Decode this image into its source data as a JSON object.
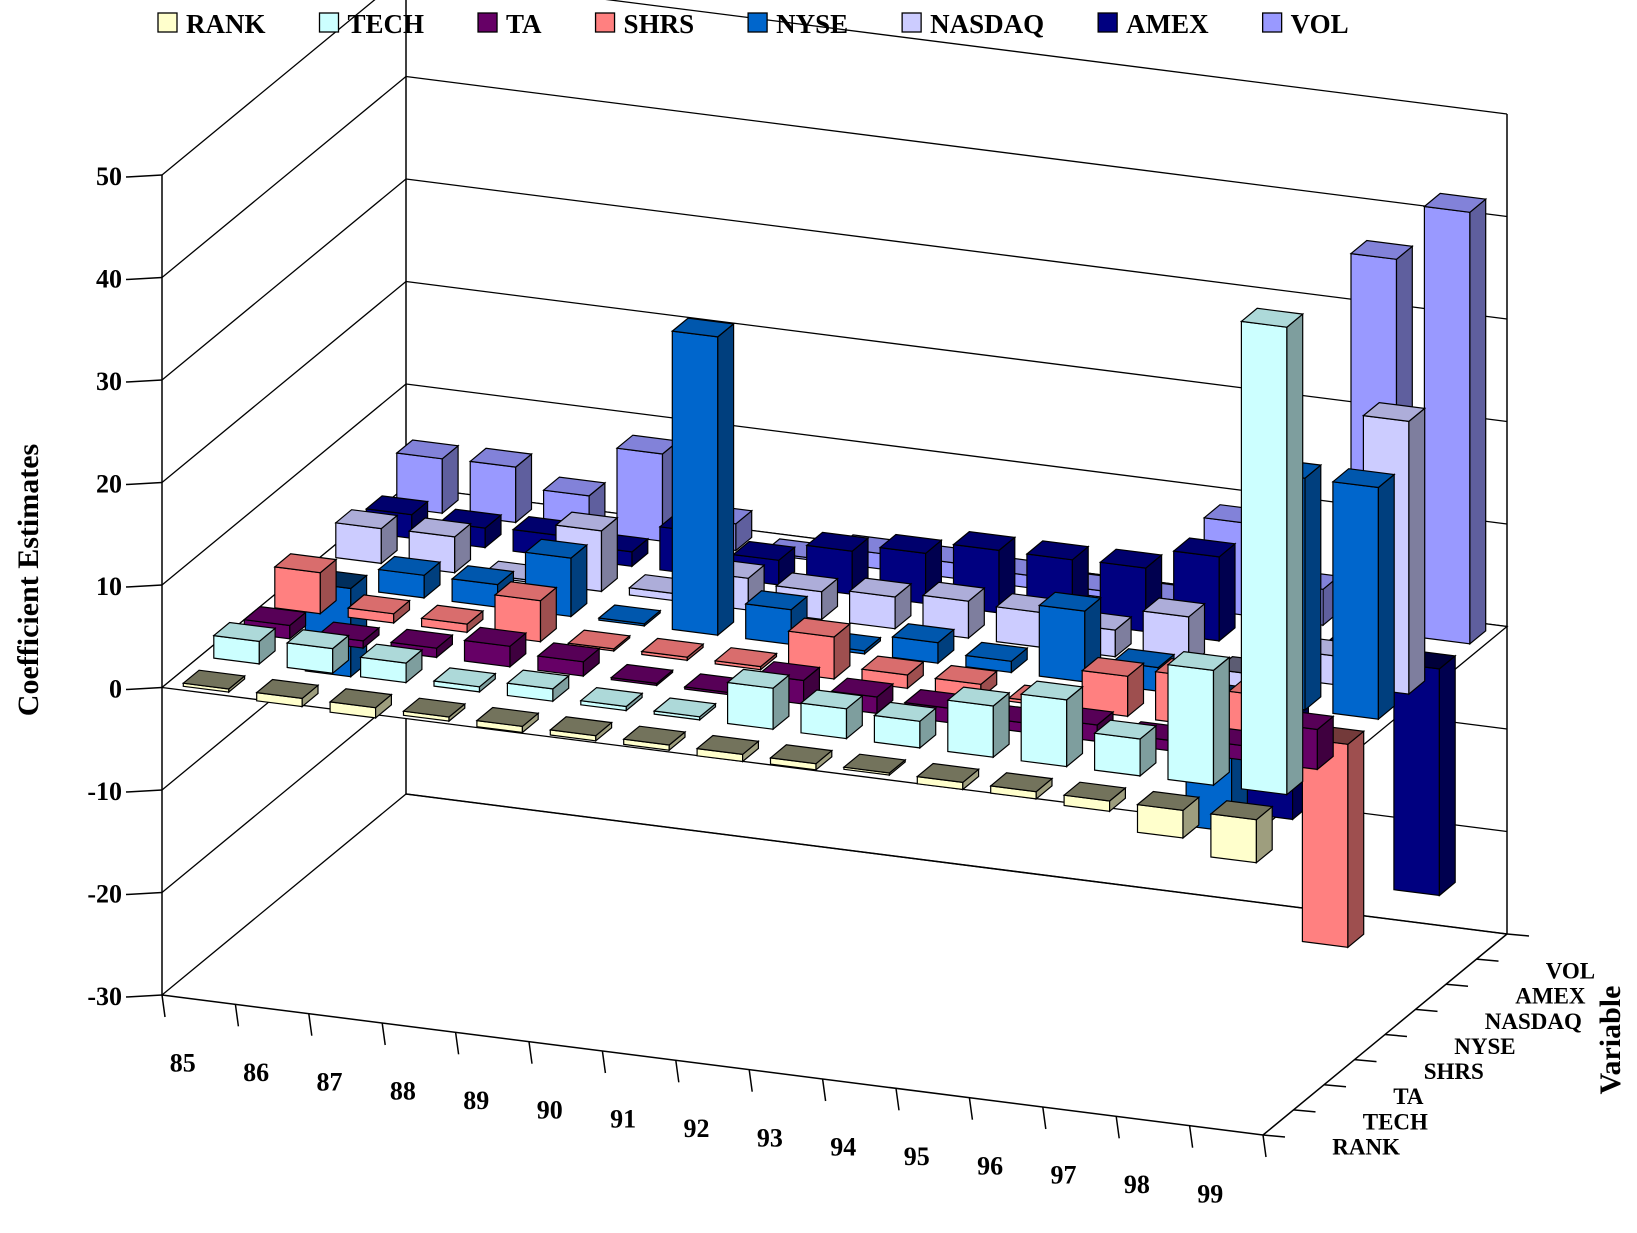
{
  "chart_data": {
    "type": "bar",
    "subtype": "3d-bar",
    "ylabel": "Coefficient Estimates",
    "zlabel": "Variable",
    "ylim": [
      -30,
      50
    ],
    "yticks": [
      50,
      40,
      30,
      20,
      10,
      0,
      -10,
      -20,
      -30
    ],
    "categories": [
      "85",
      "86",
      "87",
      "88",
      "89",
      "90",
      "91",
      "92",
      "93",
      "94",
      "95",
      "96",
      "97",
      "98",
      "99"
    ],
    "legend_position": "top",
    "grid": true,
    "series": [
      {
        "name": "RANK",
        "color": "#ffffcc",
        "values": [
          -0.3,
          -0.8,
          -1.0,
          -0.4,
          -0.6,
          -0.5,
          -0.5,
          -0.7,
          -0.6,
          -0.2,
          -0.7,
          -0.7,
          -1.0,
          -2.7,
          -4.2
        ]
      },
      {
        "name": "TECH",
        "color": "#ccffff",
        "values": [
          2.2,
          2.4,
          1.9,
          0.5,
          1.2,
          0.4,
          0.3,
          4.0,
          2.9,
          2.6,
          5.0,
          6.5,
          3.6,
          11.2,
          45.6
        ]
      },
      {
        "name": "TA",
        "color": "#660066",
        "values": [
          1.3,
          0.7,
          0.9,
          2.0,
          1.4,
          0.2,
          0.2,
          2.3,
          1.6,
          1.4,
          0.9,
          1.6,
          1.0,
          1.4,
          3.9
        ]
      },
      {
        "name": "SHRS",
        "color": "#ff8080",
        "values": [
          4.0,
          0.9,
          0.8,
          4.0,
          0.2,
          0.3,
          0.3,
          4.1,
          1.3,
          1.3,
          0.3,
          3.9,
          4.7,
          3.7,
          -19.8
        ]
      },
      {
        "name": "NYSE",
        "color": "#0066cc",
        "values": [
          -8.6,
          2.2,
          2.2,
          5.7,
          0.2,
          29.1,
          3.4,
          0.3,
          2.0,
          1.1,
          6.9,
          2.3,
          -12.8,
          22.6,
          22.6
        ]
      },
      {
        "name": "NASDAQ",
        "color": "#ccccff",
        "values": [
          3.4,
          3.5,
          0.2,
          5.9,
          0.7,
          3.1,
          2.7,
          3.1,
          3.6,
          3.4,
          2.6,
          4.8,
          -10.5,
          2.8,
          26.6
        ]
      },
      {
        "name": "AMEX",
        "color": "#000080",
        "values": [
          2.3,
          1.9,
          2.1,
          1.4,
          4.2,
          2.4,
          4.2,
          4.9,
          6.1,
          6.1,
          6.2,
          8.2,
          -16.5,
          0.6,
          -22.1
        ]
      },
      {
        "name": "VOL",
        "color": "#9999ff",
        "values": [
          5.3,
          5.4,
          3.5,
          8.5,
          2.6,
          0.2,
          1.5,
          1.5,
          1.2,
          0.6,
          0.6,
          9.0,
          3.5,
          36.6,
          42.1
        ]
      }
    ]
  }
}
